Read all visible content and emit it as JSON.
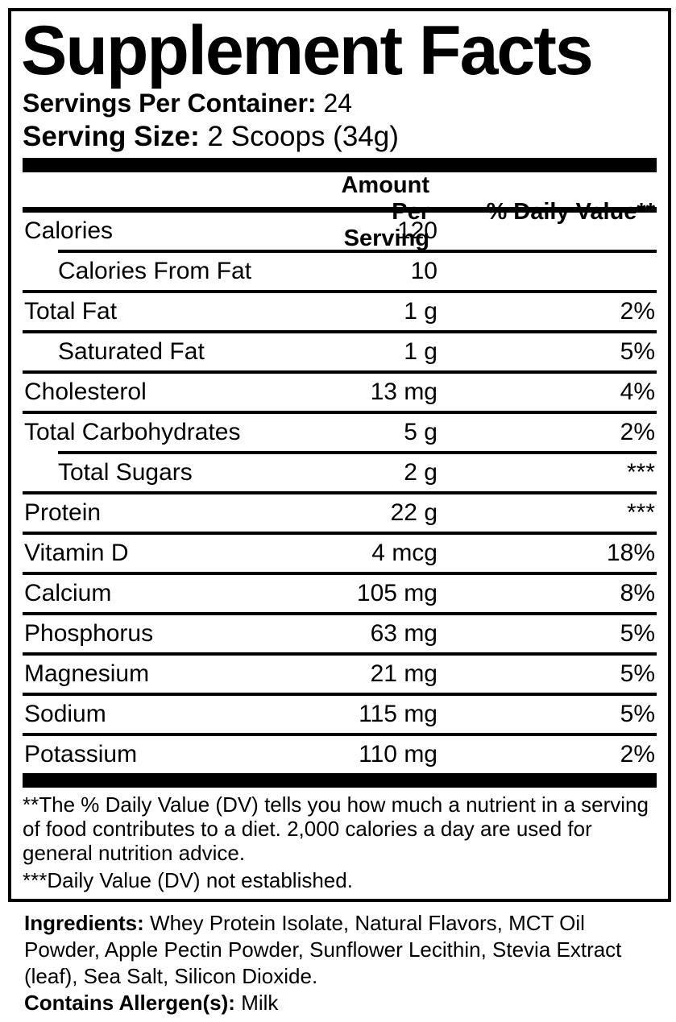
{
  "panel": {
    "title": "Supplement Facts",
    "servings_per_container": {
      "label": "Servings Per Container:",
      "value": "24"
    },
    "serving_size": {
      "label": "Serving Size:",
      "value": "2 Scoops (34g)"
    },
    "columns": {
      "amount": "Amount Per Serving",
      "daily_value": "% Daily Value**"
    },
    "rows": [
      {
        "name": "Calories",
        "amount": "120",
        "dv": "",
        "indent": false,
        "sep": "indent"
      },
      {
        "name": "Calories From Fat",
        "amount": "10",
        "dv": "",
        "indent": true,
        "sep": "full"
      },
      {
        "name": "Total Fat",
        "amount": "1 g",
        "dv": "2%",
        "indent": false,
        "sep": "full"
      },
      {
        "name": "Saturated Fat",
        "amount": "1 g",
        "dv": "5%",
        "indent": true,
        "sep": "full"
      },
      {
        "name": "Cholesterol",
        "amount": "13 mg",
        "dv": "4%",
        "indent": false,
        "sep": "full"
      },
      {
        "name": "Total Carbohydrates",
        "amount": "5 g",
        "dv": "2%",
        "indent": false,
        "sep": "indent"
      },
      {
        "name": "Total Sugars",
        "amount": "2 g",
        "dv": "***",
        "indent": true,
        "sep": "full"
      },
      {
        "name": "Protein",
        "amount": "22 g",
        "dv": "***",
        "indent": false,
        "sep": "full"
      },
      {
        "name": "Vitamin D",
        "amount": "4 mcg",
        "dv": "18%",
        "indent": false,
        "sep": "full"
      },
      {
        "name": "Calcium",
        "amount": "105 mg",
        "dv": "8%",
        "indent": false,
        "sep": "full"
      },
      {
        "name": "Phosphorus",
        "amount": "63 mg",
        "dv": "5%",
        "indent": false,
        "sep": "full"
      },
      {
        "name": "Magnesium",
        "amount": "21 mg",
        "dv": "5%",
        "indent": false,
        "sep": "full"
      },
      {
        "name": "Sodium",
        "amount": "115 mg",
        "dv": "5%",
        "indent": false,
        "sep": "full"
      },
      {
        "name": "Potassium",
        "amount": "110 mg",
        "dv": "2%",
        "indent": false,
        "sep": "none"
      }
    ],
    "footnotes": [
      "**The % Daily Value (DV) tells you how much a nutrient in a serving of food contributes to a diet. 2,000 calories a day are used for general nutrition advice.",
      "***Daily Value (DV) not established."
    ]
  },
  "ingredients": {
    "label": "Ingredients:",
    "text": "Whey Protein Isolate, Natural Flavors, MCT Oil Powder, Apple Pectin Powder, Sunflower Lecithin, Stevia Extract (leaf), Sea Salt, Silicon Dioxide.",
    "allergen_label": "Contains Allergen(s):",
    "allergen_value": "Milk"
  },
  "colors": {
    "text": "#000000",
    "background": "#ffffff",
    "bar": "#000000"
  }
}
